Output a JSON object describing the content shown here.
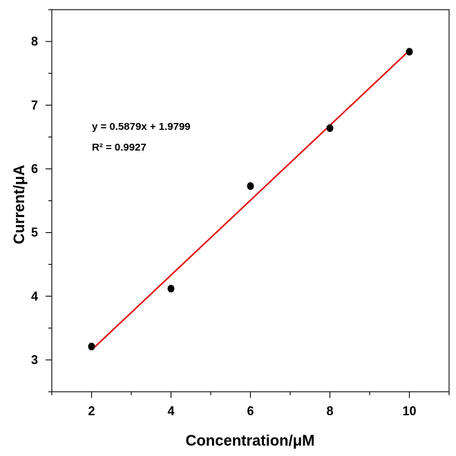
{
  "chart_data": {
    "type": "scatter",
    "xlabel": "Concentration/μM",
    "ylabel": "Current/μA",
    "xlim": [
      1,
      11
    ],
    "ylim": [
      2.5,
      8.5
    ],
    "x_ticks": [
      "2",
      "4",
      "6",
      "8",
      "10"
    ],
    "y_ticks": [
      "3",
      "4",
      "5",
      "6",
      "7",
      "8"
    ],
    "series": [
      {
        "x": [
          2,
          4,
          6,
          8,
          10
        ],
        "y": [
          3.21,
          4.12,
          5.73,
          6.64,
          7.84
        ],
        "color": "#000000"
      }
    ],
    "fit": {
      "slope": 0.5879,
      "intercept": 1.9799,
      "x_range": [
        2,
        10
      ],
      "color": "#e01010"
    },
    "annotations": {
      "equation": "y = 0.5879x + 1.9799",
      "r_squared": "R² = 0.9927"
    },
    "grid": false
  }
}
